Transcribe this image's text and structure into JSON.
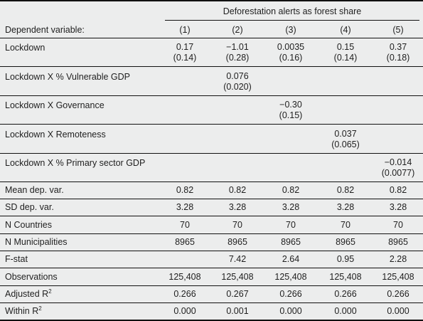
{
  "header": {
    "group_title": "Deforestation alerts as forest share",
    "dep_var_label": "Dependent variable:",
    "columns": [
      "(1)",
      "(2)",
      "(3)",
      "(4)",
      "(5)"
    ]
  },
  "coef_rows": [
    {
      "label": "Lockdown",
      "coef": [
        "0.17",
        "−1.01",
        "0.0035",
        "0.15",
        "0.37"
      ],
      "se": [
        "(0.14)",
        "(0.28)",
        "(0.16)",
        "(0.14)",
        "(0.18)"
      ]
    },
    {
      "label": "Lockdown X % Vulnerable GDP",
      "coef": [
        "",
        "0.076",
        "",
        "",
        ""
      ],
      "se": [
        "",
        "(0.020)",
        "",
        "",
        ""
      ]
    },
    {
      "label": "Lockdown X Governance",
      "coef": [
        "",
        "",
        "−0.30",
        "",
        ""
      ],
      "se": [
        "",
        "",
        "(0.15)",
        "",
        ""
      ]
    },
    {
      "label": "Lockdown X Remoteness",
      "coef": [
        "",
        "",
        "",
        "0.037",
        ""
      ],
      "se": [
        "",
        "",
        "",
        "(0.065)",
        ""
      ]
    },
    {
      "label": "Lockdown X % Primary sector GDP",
      "coef": [
        "",
        "",
        "",
        "",
        "−0.014"
      ],
      "se": [
        "",
        "",
        "",
        "",
        "(0.0077)"
      ]
    }
  ],
  "stat_rows": [
    {
      "label": "Mean dep. var.",
      "values": [
        "0.82",
        "0.82",
        "0.82",
        "0.82",
        "0.82"
      ]
    },
    {
      "label": "SD dep. var.",
      "values": [
        "3.28",
        "3.28",
        "3.28",
        "3.28",
        "3.28"
      ]
    },
    {
      "label": "N Countries",
      "values": [
        "70",
        "70",
        "70",
        "70",
        "70"
      ]
    },
    {
      "label": "N Municipalities",
      "values": [
        "8965",
        "8965",
        "8965",
        "8965",
        "8965"
      ]
    },
    {
      "label": "F-stat",
      "values": [
        "",
        "7.42",
        "2.64",
        "0.95",
        "2.28"
      ]
    },
    {
      "label": "Observations",
      "values": [
        "125,408",
        "125,408",
        "125,408",
        "125,408",
        "125,408"
      ]
    },
    {
      "label": "Adjusted R",
      "sup": "2",
      "values": [
        "0.266",
        "0.267",
        "0.266",
        "0.266",
        "0.266"
      ]
    },
    {
      "label": "Within R",
      "sup": "2",
      "values": [
        "0.000",
        "0.001",
        "0.000",
        "0.000",
        "0.000"
      ]
    }
  ]
}
